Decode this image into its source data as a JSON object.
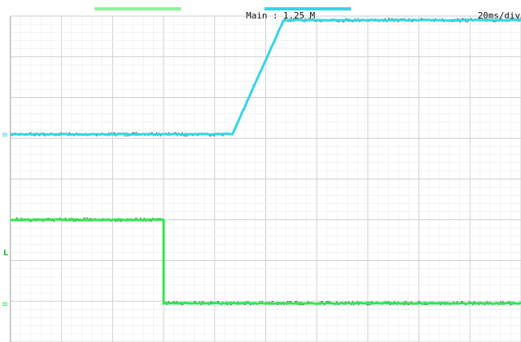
{
  "chart_data": {
    "type": "line",
    "title": "",
    "xlabel": "",
    "ylabel": "",
    "annotations": {
      "timebase": "Main : 1.25 M",
      "time_div": "20ms/div",
      "trigger_marker": "L"
    },
    "grid": true,
    "x_divisions": 10,
    "y_divisions": 8,
    "x_unit": "div",
    "y_unit": "div",
    "xlim": [
      0,
      10
    ],
    "ylim": [
      0,
      8
    ],
    "series": [
      {
        "name": "",
        "color": "#33d6e6",
        "points": [
          [
            0,
            5.1
          ],
          [
            4.35,
            5.1
          ],
          [
            5.35,
            7.9
          ],
          [
            10,
            7.9
          ]
        ]
      },
      {
        "name": "",
        "color": "#2ee84a",
        "points": [
          [
            0,
            3.0
          ],
          [
            3.0,
            3.0
          ],
          [
            3.0,
            0.95
          ],
          [
            10,
            0.95
          ]
        ]
      }
    ],
    "colors": {
      "grid_major": "#cfcfcf",
      "grid_minor": "#ececec",
      "dark_noise": "#0a3a14"
    }
  }
}
